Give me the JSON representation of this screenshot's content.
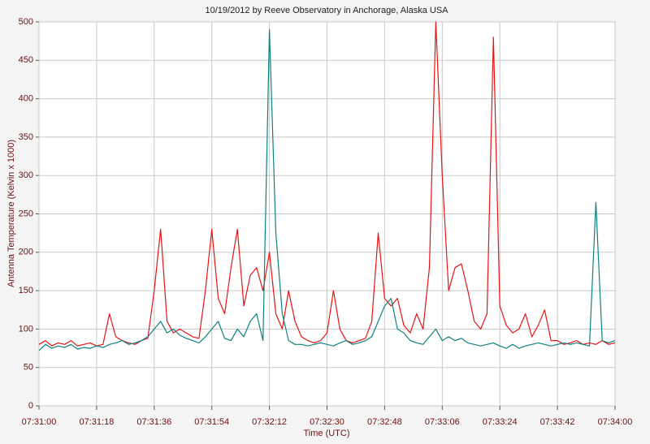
{
  "chart_data": {
    "type": "line",
    "title": "10/19/2012  by  Reeve Observatory  in  Anchorage, Alaska  USA",
    "x_label": "Time (UTC)",
    "y_label": "Antenna Temperature (Kelvin x 1000)",
    "x": [
      "07:31:00",
      "07:31:02",
      "07:31:04",
      "07:31:06",
      "07:31:08",
      "07:31:10",
      "07:31:12",
      "07:31:14",
      "07:31:16",
      "07:31:18",
      "07:31:20",
      "07:31:22",
      "07:31:24",
      "07:31:26",
      "07:31:28",
      "07:31:30",
      "07:31:32",
      "07:31:34",
      "07:31:36",
      "07:31:38",
      "07:31:40",
      "07:31:42",
      "07:31:44",
      "07:31:46",
      "07:31:48",
      "07:31:50",
      "07:31:52",
      "07:31:54",
      "07:31:56",
      "07:31:58",
      "07:32:00",
      "07:32:02",
      "07:32:04",
      "07:32:06",
      "07:32:08",
      "07:32:10",
      "07:32:12",
      "07:32:14",
      "07:32:16",
      "07:32:18",
      "07:32:20",
      "07:32:22",
      "07:32:24",
      "07:32:26",
      "07:32:28",
      "07:32:30",
      "07:32:32",
      "07:32:34",
      "07:32:36",
      "07:32:38",
      "07:32:40",
      "07:32:42",
      "07:32:44",
      "07:32:46",
      "07:32:48",
      "07:32:50",
      "07:32:52",
      "07:32:54",
      "07:32:56",
      "07:32:58",
      "07:33:00",
      "07:33:02",
      "07:33:04",
      "07:33:06",
      "07:33:08",
      "07:33:10",
      "07:33:12",
      "07:33:14",
      "07:33:16",
      "07:33:18",
      "07:33:20",
      "07:33:22",
      "07:33:24",
      "07:33:26",
      "07:33:28",
      "07:33:30",
      "07:33:32",
      "07:33:34",
      "07:33:36",
      "07:33:38",
      "07:33:40",
      "07:33:42",
      "07:33:44",
      "07:33:46",
      "07:33:48",
      "07:33:50",
      "07:33:52",
      "07:33:54",
      "07:33:56",
      "07:33:58",
      "07:34:00"
    ],
    "series": [
      {
        "color": "#e41414",
        "values": [
          80,
          85,
          78,
          82,
          80,
          85,
          78,
          80,
          82,
          78,
          80,
          120,
          90,
          85,
          82,
          80,
          85,
          88,
          150,
          230,
          110,
          95,
          100,
          95,
          90,
          88,
          150,
          230,
          140,
          120,
          180,
          230,
          130,
          170,
          180,
          150,
          200,
          120,
          100,
          150,
          110,
          90,
          85,
          82,
          85,
          95,
          150,
          100,
          85,
          82,
          85,
          88,
          110,
          225,
          140,
          130,
          140,
          105,
          95,
          120,
          100,
          180,
          500,
          300,
          150,
          180,
          185,
          150,
          110,
          100,
          120,
          480,
          130,
          105,
          95,
          100,
          120,
          90,
          105,
          125,
          85,
          85,
          80,
          82,
          85,
          80,
          82,
          80,
          85,
          80,
          82
        ]
      },
      {
        "color": "#0e8080",
        "values": [
          72,
          80,
          75,
          78,
          76,
          80,
          74,
          76,
          75,
          78,
          76,
          80,
          82,
          85,
          80,
          82,
          85,
          90,
          100,
          110,
          95,
          100,
          92,
          88,
          85,
          82,
          90,
          100,
          110,
          88,
          85,
          100,
          90,
          110,
          120,
          85,
          490,
          225,
          120,
          85,
          80,
          80,
          78,
          80,
          82,
          80,
          78,
          82,
          85,
          80,
          82,
          85,
          90,
          110,
          130,
          140,
          100,
          95,
          85,
          82,
          80,
          90,
          100,
          85,
          90,
          85,
          88,
          82,
          80,
          78,
          80,
          82,
          78,
          75,
          80,
          75,
          78,
          80,
          82,
          80,
          78,
          80,
          82,
          80,
          82,
          80,
          78,
          265,
          85,
          82,
          85
        ]
      }
    ],
    "xlim": [
      "07:31:00",
      "07:34:00"
    ],
    "xticks": [
      "07:31:00",
      "07:31:18",
      "07:31:36",
      "07:31:54",
      "07:32:12",
      "07:32:30",
      "07:32:48",
      "07:33:06",
      "07:33:24",
      "07:33:42",
      "07:34:00"
    ],
    "ylim": [
      0,
      500
    ],
    "yticks": [
      0,
      50,
      100,
      150,
      200,
      250,
      300,
      350,
      400,
      450,
      500
    ],
    "grid": true
  }
}
